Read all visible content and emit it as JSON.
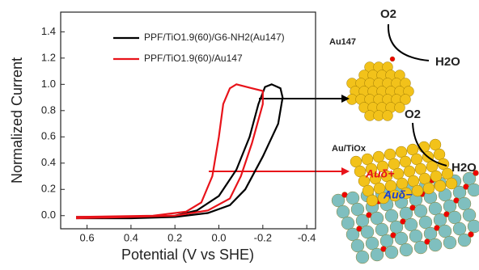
{
  "chart_data": {
    "type": "line",
    "xlabel": "Potential (V vs SHE)",
    "ylabel": "Normalized Current",
    "xlim": [
      0.72,
      -0.44
    ],
    "ylim": [
      -0.1,
      1.55
    ],
    "xticks": [
      0.6,
      0.4,
      0.2,
      {
        "value": 0,
        "label": "0.0"
      },
      -0.2,
      -0.4
    ],
    "yticks": [
      {
        "value": 0,
        "label": "0.0"
      },
      0.2,
      0.4,
      0.6,
      0.8,
      {
        "value": 1,
        "label": "1.0"
      },
      1.2,
      1.4
    ],
    "legend": "upper right",
    "series": [
      {
        "name": "PPF/TiO1.9(60)/G6-NH2(Au147)",
        "color": "#000000",
        "x": [
          0.65,
          0.4,
          0.2,
          0.1,
          0.0,
          -0.08,
          -0.14,
          -0.18,
          -0.21,
          -0.24,
          -0.28,
          -0.29,
          -0.27,
          -0.2,
          -0.12,
          -0.05,
          0.05,
          0.2,
          0.4,
          0.65
        ],
        "values": [
          -0.01,
          -0.01,
          0.0,
          0.04,
          0.15,
          0.35,
          0.6,
          0.85,
          0.98,
          1.0,
          0.97,
          0.9,
          0.7,
          0.45,
          0.2,
          0.08,
          0.02,
          -0.01,
          -0.02,
          -0.02
        ]
      },
      {
        "name": "PPF/TiO1.9(60)/Au147",
        "color": "#e8131a",
        "x": [
          0.65,
          0.3,
          0.15,
          0.08,
          0.03,
          0.0,
          -0.02,
          -0.05,
          -0.08,
          -0.15,
          -0.2,
          -0.2,
          -0.15,
          -0.1,
          -0.05,
          0.05,
          0.2,
          0.4,
          0.65
        ],
        "values": [
          -0.01,
          0.0,
          0.03,
          0.1,
          0.3,
          0.6,
          0.85,
          0.97,
          1.0,
          0.97,
          0.95,
          0.85,
          0.55,
          0.3,
          0.13,
          0.04,
          0.0,
          -0.01,
          -0.02
        ]
      }
    ],
    "annotations": {
      "o2_top": "O2",
      "au147": "Au147",
      "h2o_top": "H2O",
      "o2_bottom": "O2",
      "au_tiox": "Au/TiOx",
      "h2o_bottom": "H2O",
      "au_plus": "Auδ+",
      "au_minus": "Auδ−"
    }
  }
}
